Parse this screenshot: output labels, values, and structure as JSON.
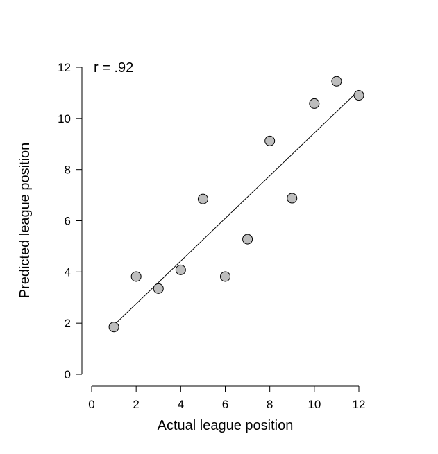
{
  "chart_data": {
    "type": "scatter",
    "title": "",
    "xlabel": "Actual league position",
    "ylabel": "Predicted league position",
    "annotation": "r = .92",
    "xlim": [
      0,
      12
    ],
    "ylim": [
      0,
      12
    ],
    "x_ticks": [
      0,
      2,
      4,
      6,
      8,
      10,
      12
    ],
    "y_ticks": [
      0,
      2,
      4,
      6,
      8,
      10,
      12
    ],
    "grid": false,
    "legend": "none",
    "points": [
      {
        "x": 1,
        "y": 1.85
      },
      {
        "x": 2,
        "y": 3.82
      },
      {
        "x": 3,
        "y": 3.35
      },
      {
        "x": 4,
        "y": 4.08
      },
      {
        "x": 5,
        "y": 6.85
      },
      {
        "x": 6,
        "y": 3.82
      },
      {
        "x": 7,
        "y": 5.28
      },
      {
        "x": 8,
        "y": 9.12
      },
      {
        "x": 9,
        "y": 6.88
      },
      {
        "x": 10,
        "y": 10.58
      },
      {
        "x": 11,
        "y": 11.45
      },
      {
        "x": 12,
        "y": 10.9
      }
    ],
    "fit_line": {
      "x1": 1,
      "y1": 1.92,
      "x2": 12,
      "y2": 11.1
    },
    "marker_color": "#bdbdbd"
  }
}
